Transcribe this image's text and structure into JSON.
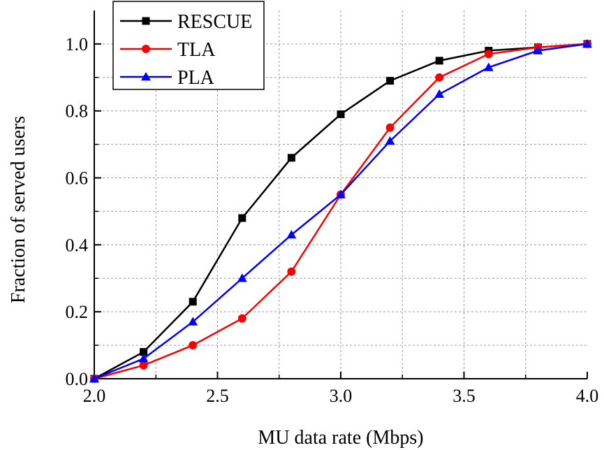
{
  "chart_data": {
    "type": "line",
    "title": "",
    "xlabel": "MU data rate (Mbps)",
    "ylabel": "Fraction of served users",
    "xlim": [
      2.0,
      4.0
    ],
    "ylim": [
      0.0,
      1.1
    ],
    "x_ticks": [
      2.0,
      2.5,
      3.0,
      3.5,
      4.0
    ],
    "x_tick_labels": [
      "2.0",
      "2.5",
      "3.0",
      "3.5",
      "4.0"
    ],
    "y_ticks": [
      0.0,
      0.2,
      0.4,
      0.6,
      0.8,
      1.0
    ],
    "y_tick_labels": [
      "0.0",
      "0.2",
      "0.4",
      "0.6",
      "0.8",
      "1.0"
    ],
    "x_minor_ticks": [
      2.25,
      2.75,
      3.25,
      3.75
    ],
    "y_minor_ticks": [
      0.1,
      0.3,
      0.5,
      0.7,
      0.9
    ],
    "grid": true,
    "legend_position": "top-left",
    "x": [
      2.0,
      2.2,
      2.4,
      2.6,
      2.8,
      3.0,
      3.2,
      3.4,
      3.6,
      3.8,
      4.0
    ],
    "series": [
      {
        "name": "RESCUE",
        "color": "#000000",
        "marker": "square",
        "values": [
          0.0,
          0.08,
          0.23,
          0.48,
          0.66,
          0.79,
          0.89,
          0.95,
          0.98,
          0.99,
          1.0
        ]
      },
      {
        "name": "TLA",
        "color": "#ff0000",
        "marker": "circle",
        "values": [
          0.0,
          0.04,
          0.1,
          0.18,
          0.32,
          0.55,
          0.75,
          0.9,
          0.97,
          0.99,
          1.0
        ]
      },
      {
        "name": "PLA",
        "color": "#0000ff",
        "marker": "triangle",
        "values": [
          0.0,
          0.06,
          0.17,
          0.3,
          0.43,
          0.55,
          0.71,
          0.85,
          0.93,
          0.98,
          1.0
        ]
      }
    ]
  }
}
